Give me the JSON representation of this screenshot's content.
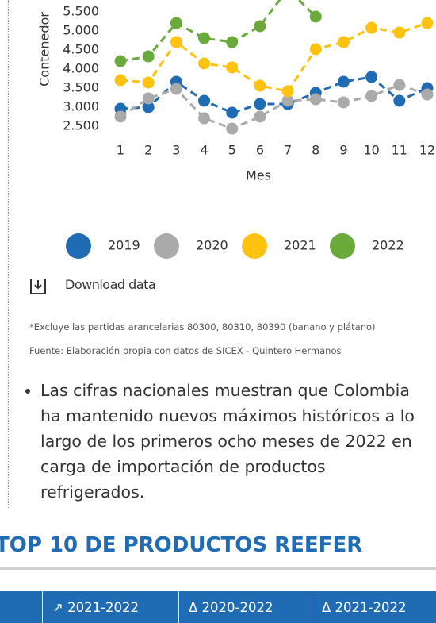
{
  "chart_data": {
    "type": "line",
    "y_label": "Contenedor",
    "x_label": "Mes",
    "categories": [
      "1",
      "2",
      "3",
      "4",
      "5",
      "6",
      "7",
      "8",
      "9",
      "10",
      "11",
      "12"
    ],
    "series": [
      {
        "name": "2019",
        "color": "#1f6cb5",
        "values": [
          2958,
          3000,
          3667,
          3167,
          2854,
          3083,
          3083,
          3375,
          3667,
          3792,
          3167,
          3500
        ]
      },
      {
        "name": "2020",
        "color": "#aaaaaa",
        "values": [
          2750,
          3229,
          3479,
          2708,
          2437,
          2750,
          3167,
          3208,
          3125,
          3292,
          3583,
          3333
        ]
      },
      {
        "name": "2021",
        "color": "#ffc20e",
        "values": [
          3708,
          3646,
          4708,
          4146,
          4042,
          3562,
          3417,
          4521,
          4708,
          5083,
          4958,
          5208
        ]
      },
      {
        "name": "2022",
        "color": "#6aaa3a",
        "values": [
          4208,
          4333,
          5208,
          4812,
          4708,
          5125,
          6100,
          5375,
          null,
          null,
          null,
          null
        ]
      }
    ],
    "ylim": [
      2500,
      5500
    ],
    "yticks": [
      {
        "value": 2500,
        "label": "2.500"
      },
      {
        "value": 3000,
        "label": "3.000"
      },
      {
        "value": 3500,
        "label": "3.500"
      },
      {
        "value": 4000,
        "label": "4.000"
      },
      {
        "value": 4500,
        "label": "4.500"
      },
      {
        "value": 5000,
        "label": "5.000"
      },
      {
        "value": 5500,
        "label": "5.500"
      }
    ],
    "legend": "bottom"
  },
  "download": "Download data",
  "notes": [
    "*Excluye las partidas arancelarias 80300, 80310, 80390 (banano y plátano)",
    "Fuente: Elaboración propia con datos de SICEX - Quintero Hermanos"
  ],
  "bullet": "Las cifras nacionales muestran que Colombia ha mantenido nuevos máximos históricos a lo largo de los primeros ocho meses de 2022 en carga de importación de productos refrigerados.",
  "section_title": "TOP 10 DE PRODUCTOS REEFER",
  "table": {
    "headers": [
      "↗ 2021-2022",
      "Δ 2020-2022",
      "Δ 2021-2022"
    ]
  }
}
